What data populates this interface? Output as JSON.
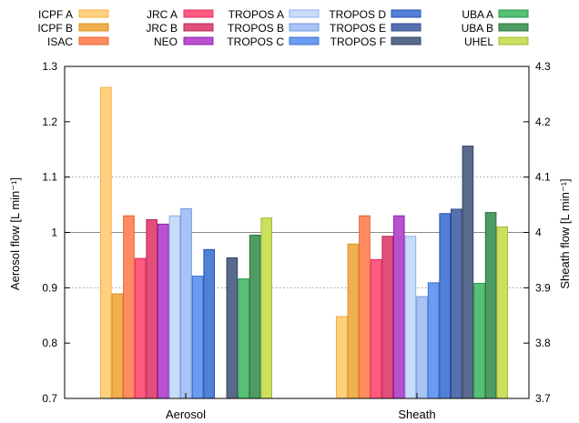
{
  "chart_data": {
    "type": "bar",
    "categories": [
      "Aerosol",
      "Sheath"
    ],
    "ylabel": "Aerosol flow [L min⁻¹]",
    "y2label": "Sheath flow [L min⁻¹]",
    "ylim": [
      0.7,
      1.3
    ],
    "y2lim": [
      3.7,
      4.3
    ],
    "yticks": [
      "0.7",
      "0.8",
      "0.9",
      "1",
      "1.1",
      "1.2",
      "1.3"
    ],
    "y2ticks": [
      "3.7",
      "3.8",
      "3.9",
      "4",
      "4.1",
      "4.2",
      "4.3"
    ],
    "grid": "horizontal dotted at 0.9 and 1.1, solid reference line at 1",
    "legend_position": "top",
    "series": [
      {
        "name": "ICPF A",
        "color": "#ffd080",
        "edge": "#f0b040",
        "aerosol": 1.262,
        "sheath": 3.848
      },
      {
        "name": "ICPF B",
        "color": "#f0b050",
        "edge": "#d89020",
        "aerosol": 0.889,
        "sheath": 3.979
      },
      {
        "name": "ISAC",
        "color": "#ff8c60",
        "edge": "#e06030",
        "aerosol": 1.03,
        "sheath": 4.03
      },
      {
        "name": "JRC A",
        "color": "#ff5a80",
        "edge": "#e03060",
        "aerosol": 0.953,
        "sheath": 3.951
      },
      {
        "name": "JRC B",
        "color": "#e0507a",
        "edge": "#b82858",
        "aerosol": 1.023,
        "sheath": 3.993
      },
      {
        "name": "NEO",
        "color": "#b850d0",
        "edge": "#8c28a8",
        "aerosol": 1.015,
        "sheath": 4.03
      },
      {
        "name": "TROPOS A",
        "color": "#c8dcfa",
        "edge": "#90b0e8",
        "aerosol": 1.03,
        "sheath": 3.993
      },
      {
        "name": "TROPOS B",
        "color": "#a8c4f4",
        "edge": "#7098e0",
        "aerosol": 1.043,
        "sheath": 3.884
      },
      {
        "name": "TROPOS C",
        "color": "#6c9cf0",
        "edge": "#3c70d0",
        "aerosol": 0.921,
        "sheath": 3.909
      },
      {
        "name": "TROPOS D",
        "color": "#5080d8",
        "edge": "#2850b0",
        "aerosol": 0.969,
        "sheath": 4.034
      },
      {
        "name": "TROPOS E",
        "color": "#5670b0",
        "edge": "#344c88",
        "aerosol": null,
        "sheath": 4.042
      },
      {
        "name": "TROPOS F",
        "color": "#5a6a8c",
        "edge": "#36445e",
        "aerosol": 0.954,
        "sheath": 4.156
      },
      {
        "name": "UBA A",
        "color": "#56c074",
        "edge": "#2e9450",
        "aerosol": 0.916,
        "sheath": 3.908
      },
      {
        "name": "UBA B",
        "color": "#4e9c64",
        "edge": "#2c7040",
        "aerosol": 0.995,
        "sheath": 4.036
      },
      {
        "name": "UHEL",
        "color": "#cce060",
        "edge": "#a4b830",
        "aerosol": 1.026,
        "sheath": 4.01
      }
    ]
  }
}
